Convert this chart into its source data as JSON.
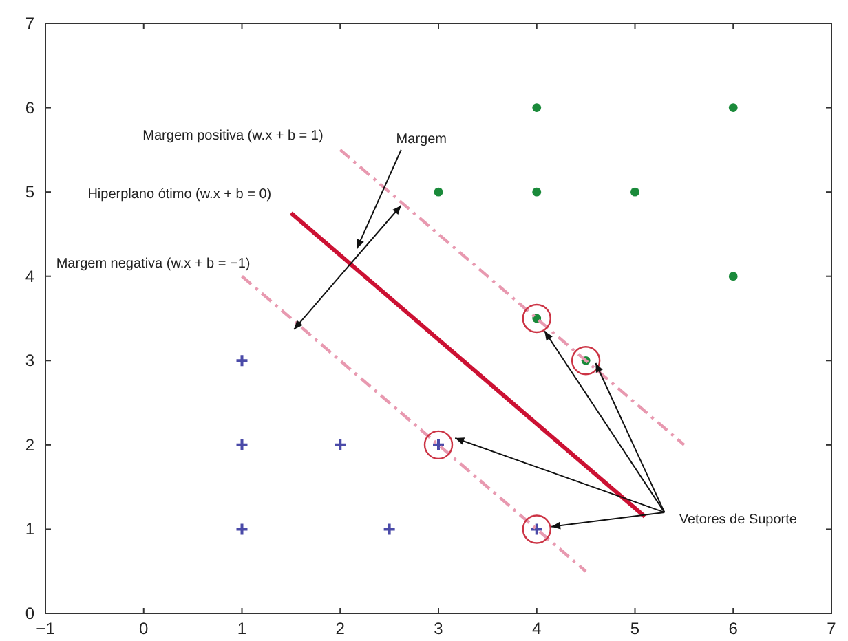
{
  "chart_data": {
    "type": "scatter",
    "xlim": [
      -1,
      7
    ],
    "ylim": [
      0,
      7
    ],
    "xticks": [
      -1,
      0,
      1,
      2,
      3,
      4,
      5,
      6,
      7
    ],
    "yticks": [
      0,
      1,
      2,
      3,
      4,
      5,
      6,
      7
    ],
    "grid": false,
    "series": [
      {
        "marker": "circle",
        "color": "#1a8a3a",
        "x": [
          3,
          4,
          5,
          4,
          6,
          6,
          4,
          4.5
        ],
        "values": [
          5,
          5,
          5,
          6,
          6,
          4,
          3.5,
          3
        ]
      },
      {
        "marker": "cross",
        "color": "#4a4aa8",
        "x": [
          1,
          1,
          1,
          2,
          2.5,
          3,
          4
        ],
        "values": [
          1,
          2,
          3,
          2,
          1,
          2,
          1
        ]
      },
      {
        "type": "line",
        "marker": "none",
        "line_style": "solid",
        "color": "#cc1133",
        "x": [
          1.5,
          5.1
        ],
        "values": [
          4.75,
          1.15
        ]
      },
      {
        "type": "line",
        "marker": "none",
        "line_style": "dashdot",
        "color": "#e899b0",
        "x": [
          2,
          5.5
        ],
        "values": [
          5.5,
          2
        ]
      },
      {
        "type": "line",
        "marker": "none",
        "line_style": "dashdot",
        "color": "#e899b0",
        "x": [
          1,
          4.5
        ],
        "values": [
          4,
          0.5
        ]
      }
    ],
    "annotations": [
      "Margem positiva (w.x + b = 1)",
      "Margem",
      "Hiperplano ótimo (w.x + b = 0)",
      "Margem negativa (w.x + b = −1)",
      {
        "text": "Vetores de Suporte",
        "x": 4.6,
        "y": 2.97
      }
    ]
  }
}
